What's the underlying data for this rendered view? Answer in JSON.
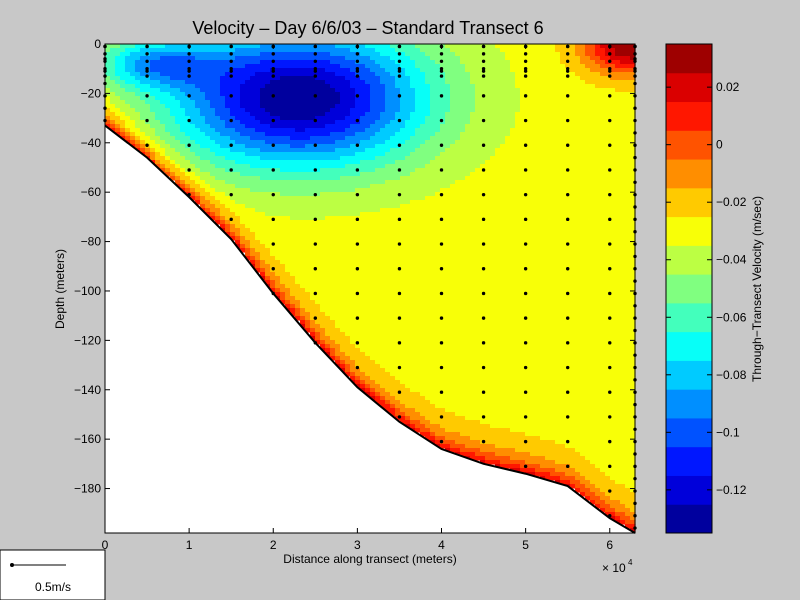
{
  "chart_data": {
    "type": "heatmap",
    "title": "Velocity – Day 6/6/03 – Standard Transect 6",
    "xlabel": "Distance along transect (meters)",
    "ylabel": "Depth (meters)",
    "x_multiplier_label": "× 10",
    "x_multiplier_exponent": "4",
    "xlim": [
      0,
      63000
    ],
    "ylim": [
      -198,
      0
    ],
    "x_ticks": [
      0,
      10000,
      20000,
      30000,
      40000,
      50000,
      60000
    ],
    "x_tick_labels": [
      "0",
      "1",
      "2",
      "3",
      "4",
      "5",
      "6"
    ],
    "y_ticks": [
      0,
      -20,
      -40,
      -60,
      -80,
      -100,
      -120,
      -140,
      -160,
      -180
    ],
    "y_tick_labels": [
      "0",
      "−20",
      "−40",
      "−60",
      "−80",
      "−100",
      "−120",
      "−140",
      "−160",
      "−180"
    ],
    "bottom_profile": [
      {
        "x": 0,
        "y": -33
      },
      {
        "x": 5000,
        "y": -46
      },
      {
        "x": 10000,
        "y": -62
      },
      {
        "x": 15000,
        "y": -79
      },
      {
        "x": 20000,
        "y": -101
      },
      {
        "x": 25000,
        "y": -121
      },
      {
        "x": 30000,
        "y": -139
      },
      {
        "x": 35000,
        "y": -153
      },
      {
        "x": 40000,
        "y": -164
      },
      {
        "x": 45000,
        "y": -170
      },
      {
        "x": 50000,
        "y": -174
      },
      {
        "x": 55000,
        "y": -179
      },
      {
        "x": 60000,
        "y": -192
      },
      {
        "x": 63000,
        "y": -198
      }
    ],
    "station_x": [
      0,
      5000,
      10000,
      15000,
      20000,
      25000,
      30000,
      35000,
      40000,
      45000,
      50000,
      55000,
      60000,
      63000
    ],
    "sample_depth_step": 10,
    "colorbar": {
      "label": "Through−Transect Velocity (m/sec)",
      "vmin": -0.135,
      "vmax": 0.035,
      "levels": 17,
      "ticks": [
        0.02,
        0,
        -0.02,
        -0.04,
        -0.06,
        -0.08,
        -0.1,
        -0.12
      ],
      "tick_labels": [
        "0.02",
        "0",
        "−0.02",
        "−0.04",
        "−0.06",
        "−0.08",
        "−0.1",
        "−0.12"
      ]
    },
    "velocity_features": [
      {
        "kind": "core",
        "x": 23000,
        "y": -22,
        "rx": 15000,
        "ry": 28,
        "amp": -0.105
      },
      {
        "kind": "tail",
        "x": 6000,
        "y": -8,
        "rx": 7000,
        "ry": 10,
        "amp": -0.045
      },
      {
        "kind": "surface-positive",
        "x": 63000,
        "y": 0,
        "rx": 6000,
        "ry": 12,
        "amp": 0.07
      },
      {
        "kind": "bottom-positive",
        "amp": 0.05,
        "scale": 7
      }
    ],
    "velocity_background": -0.03
  },
  "legend": {
    "scale_label": "0.5m/s"
  }
}
